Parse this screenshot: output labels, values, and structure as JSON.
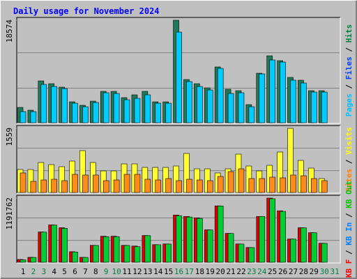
{
  "title": "Daily usage for November 2024",
  "title_color": "#0000ff",
  "chart_data": [
    {
      "type": "bar",
      "ylim": [
        0,
        18574
      ],
      "yticks": [
        18574
      ],
      "legend": [
        {
          "text": "Pages",
          "color": "#00c0ff"
        },
        {
          "text": "Files",
          "color": "#0040ff"
        },
        {
          "text": "Hits",
          "color": "#008040"
        }
      ],
      "legend_separator": " / ",
      "series": [
        {
          "color": "#1f7a5a",
          "values": [
            2780,
            2275,
            7580,
            7075,
            6445,
            3790,
            3160,
            3915,
            5685,
            5685,
            4550,
            5055,
            5685,
            3790,
            3790,
            18574,
            7835,
            7075,
            6320,
            10110,
            6065,
            5810,
            3285,
            8970,
            12130,
            11245,
            8215,
            7710,
            5810,
            5810,
            null
          ]
        },
        {
          "color": "#00ccff",
          "values": [
            2020,
            2020,
            6950,
            6570,
            6190,
            3540,
            2905,
            3665,
            5435,
            5305,
            4170,
            4420,
            5055,
            3540,
            3540,
            16425,
            7455,
            6570,
            5940,
            9855,
            5305,
            5435,
            2905,
            8845,
            11370,
            10995,
            7710,
            7200,
            5560,
            5560,
            null
          ]
        }
      ]
    },
    {
      "type": "bar",
      "ylim": [
        0,
        1559
      ],
      "yticks": [
        1559
      ],
      "legend": [
        {
          "text": "Sites",
          "color": "#ff8000"
        },
        {
          "text": "Visits",
          "color": "#ffff00"
        }
      ],
      "legend_separator": " / ",
      "series": [
        {
          "color": "#ffff33",
          "values": [
            559,
            559,
            729,
            678,
            627,
            763,
            1017,
            729,
            525,
            525,
            695,
            695,
            610,
            610,
            610,
            644,
            949,
            576,
            576,
            475,
            576,
            932,
            644,
            525,
            661,
            983,
            1559,
            780,
            593,
            339,
            null
          ]
        },
        {
          "color": "#ff8c1a",
          "values": [
            475,
            271,
            305,
            322,
            288,
            441,
            424,
            424,
            288,
            305,
            441,
            441,
            322,
            305,
            339,
            288,
            322,
            305,
            288,
            390,
            508,
            576,
            339,
            339,
            373,
            356,
            424,
            407,
            339,
            288,
            null
          ]
        }
      ]
    },
    {
      "type": "bar",
      "ylim": [
        0,
        1191762
      ],
      "yticks": [
        1191762
      ],
      "legend": [
        {
          "text": "KB F",
          "color": "#ff0000"
        },
        {
          "text": "KB In",
          "color": "#0080ff"
        },
        {
          "text": "KB Out",
          "color": "#00c000"
        }
      ],
      "legend_separator": " / ",
      "categories": [
        "1",
        "2",
        "3",
        "4",
        "5",
        "6",
        "7",
        "8",
        "9",
        "10",
        "11",
        "12",
        "13",
        "14",
        "15",
        "16",
        "17",
        "18",
        "19",
        "20",
        "21",
        "22",
        "23",
        "24",
        "25",
        "26",
        "27",
        "28",
        "29",
        "30",
        "31"
      ],
      "category_colors": [
        "#000000",
        "#008040",
        "#008040",
        "#000000",
        "#000000",
        "#000000",
        "#000000",
        "#000000",
        "#008040",
        "#008040",
        "#000000",
        "#000000",
        "#000000",
        "#000000",
        "#000000",
        "#008040",
        "#008040",
        "#000000",
        "#000000",
        "#000000",
        "#000000",
        "#000000",
        "#008040",
        "#008040",
        "#000000",
        "#000000",
        "#000000",
        "#000000",
        "#000000",
        "#008040",
        "#008040"
      ],
      "series": [
        {
          "color": "#e00000",
          "values": [
            52384,
            91672,
            563128,
            694088,
            641704,
            196440,
            91672,
            314304,
            484552,
            484552,
            314304,
            301208,
            497648,
            327400,
            340496,
            877432,
            851240,
            825048,
            602416,
            1047680,
            536936,
            340496,
            275016,
            851240,
            1191762,
            956008,
            432168,
            641704,
            550032,
            353592,
            null
          ]
        },
        {
          "color": "#00cc33",
          "values": [
            45000,
            90000,
            560000,
            690000,
            630000,
            190000,
            90000,
            312000,
            475000,
            476000,
            312000,
            290000,
            495000,
            325000,
            338000,
            865000,
            840000,
            815000,
            600000,
            1045000,
            535000,
            338000,
            273000,
            850000,
            1180000,
            945000,
            430000,
            640000,
            548000,
            351000,
            null
          ]
        }
      ]
    }
  ]
}
